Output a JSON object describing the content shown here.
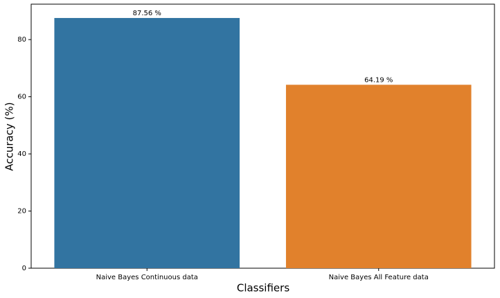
{
  "chart_data": {
    "type": "bar",
    "categories": [
      "Naive Bayes Continuous data",
      "Naive Bayes All Feature data"
    ],
    "values": [
      87.56,
      64.19
    ],
    "value_labels": [
      "87.56 %",
      "64.19 %"
    ],
    "colors": [
      "#3274a1",
      "#e1812c"
    ],
    "xlabel": "Classifiers",
    "ylabel": "Accuracy (%)",
    "ylim": [
      0,
      92.4
    ],
    "yticks": [
      0,
      20,
      40,
      60,
      80
    ],
    "grid": false
  }
}
